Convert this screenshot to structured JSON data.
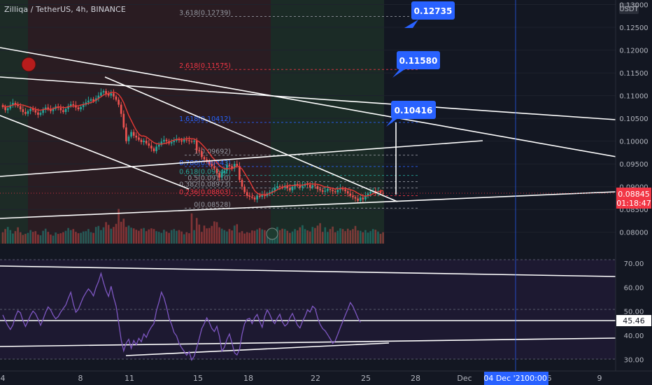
{
  "header": {
    "title": "Zilliqa / TetherUS, 4h, BINANCE"
  },
  "chart_data": [
    {
      "type": "candlestick",
      "panel": "price",
      "symbol": "Zilliqa / TetherUS",
      "interval": "4h",
      "exchange": "BINANCE",
      "currency_label": "USDT",
      "ylim": [
        0.0775,
        0.131
      ],
      "y_ticks": [
        "0.13000",
        "0.12500",
        "0.12000",
        "0.11500",
        "0.11000",
        "0.10500",
        "0.10000",
        "0.09500",
        "0.09000",
        "0.08500",
        "0.08000"
      ],
      "x_ticks": [
        "4",
        "8",
        "11",
        "15",
        "18",
        "22",
        "25",
        "28",
        "Dec",
        "6",
        "9"
      ],
      "last_price": "0.08845",
      "countdown": "01:18:47",
      "crosshair_date": "04 Dec '21",
      "crosshair_time": "00:00",
      "fib_levels": [
        {
          "label": "3.618(0.12739)",
          "value": 0.12739,
          "color": "#9598a1"
        },
        {
          "label": "2.618(0.11575)",
          "value": 0.11575,
          "color": "#f23645"
        },
        {
          "label": "1.618(0.10412)",
          "value": 0.10412,
          "color": "#2962ff"
        },
        {
          "label": "1(0.09692)",
          "value": 0.09692,
          "color": "#9598a1"
        },
        {
          "label": "0.786(0.09443)",
          "value": 0.09443,
          "color": "#2962ff"
        },
        {
          "label": "0.618(0.09247)",
          "value": 0.09247,
          "color": "#26a69a"
        },
        {
          "label": "0.5(0.09110)",
          "value": 0.0911,
          "color": "#9598a1"
        },
        {
          "label": "0.382(0.08973)",
          "value": 0.08973,
          "color": "#9598a1"
        },
        {
          "label": "0.236(0.08803)",
          "value": 0.08803,
          "color": "#f23645"
        },
        {
          "label": "0(0.08528)",
          "value": 0.08528,
          "color": "#9598a1"
        }
      ],
      "callouts": [
        "0.12735",
        "0.11580",
        "0.10416"
      ],
      "close_series": [
        0.1075,
        0.1068,
        0.1072,
        0.1079,
        0.1084,
        0.1081,
        0.1077,
        0.107,
        0.1064,
        0.106,
        0.1066,
        0.1071,
        0.1068,
        0.1063,
        0.1058,
        0.1062,
        0.1069,
        0.1074,
        0.107,
        0.1066,
        0.1071,
        0.1076,
        0.1073,
        0.1068,
        0.1064,
        0.1071,
        0.1077,
        0.1081,
        0.1079,
        0.1074,
        0.107,
        0.1075,
        0.108,
        0.1085,
        0.1089,
        0.1092,
        0.1088,
        0.1094,
        0.11,
        0.1107,
        0.111,
        0.1104,
        0.11,
        0.1105,
        0.1098,
        0.1091,
        0.108,
        0.106,
        0.103,
        0.1,
        0.101,
        0.102,
        0.1012,
        0.1008,
        0.1003,
        0.0998,
        0.1001,
        0.0995,
        0.099,
        0.0984,
        0.0978,
        0.0988,
        0.0992,
        0.0999,
        0.1003,
        0.1,
        0.0995,
        0.0998,
        0.1001,
        0.1005,
        0.1002,
        0.0999,
        0.1003,
        0.1002,
        0.1,
        0.0999,
        0.1001,
        0.098,
        0.0978,
        0.0965,
        0.096,
        0.0955,
        0.095,
        0.0945,
        0.094,
        0.093,
        0.092,
        0.093,
        0.0935,
        0.0948,
        0.0945,
        0.094,
        0.095,
        0.0945,
        0.0915,
        0.09,
        0.0888,
        0.088,
        0.0878,
        0.0876,
        0.0872,
        0.088,
        0.0878,
        0.0883,
        0.088,
        0.0885,
        0.0888,
        0.0891,
        0.0898,
        0.0901,
        0.09,
        0.0898,
        0.0902,
        0.0897,
        0.0892,
        0.09,
        0.0906,
        0.0902,
        0.0898,
        0.0902,
        0.0906,
        0.0904,
        0.0898,
        0.0903,
        0.0901,
        0.0895,
        0.0892,
        0.0889,
        0.0891,
        0.0895,
        0.0893,
        0.089,
        0.0888,
        0.0893,
        0.0897,
        0.0894,
        0.089,
        0.0885,
        0.088,
        0.0877,
        0.0874,
        0.0869,
        0.0876,
        0.0872,
        0.088,
        0.0885,
        0.0889,
        0.0891,
        0.0886,
        0.089,
        0.0886,
        0.08845
      ],
      "volume_series": [
        0.33,
        0.42,
        0.48,
        0.39,
        0.29,
        0.36,
        0.47,
        0.33,
        0.25,
        0.28,
        0.31,
        0.39,
        0.34,
        0.36,
        0.26,
        0.24,
        0.37,
        0.43,
        0.34,
        0.26,
        0.23,
        0.32,
        0.28,
        0.3,
        0.33,
        0.37,
        0.45,
        0.39,
        0.42,
        0.34,
        0.3,
        0.31,
        0.35,
        0.36,
        0.42,
        0.33,
        0.31,
        0.48,
        0.51,
        0.39,
        0.47,
        0.62,
        0.54,
        0.43,
        0.48,
        0.57,
        1.0,
        0.63,
        0.72,
        0.48,
        0.52,
        0.46,
        0.44,
        0.4,
        0.37,
        0.43,
        0.45,
        0.36,
        0.41,
        0.44,
        0.42,
        0.36,
        0.34,
        0.31,
        0.4,
        0.35,
        0.31,
        0.39,
        0.42,
        0.37,
        0.39,
        0.35,
        0.27,
        0.33,
        0.3,
        0.87,
        0.39,
        0.74,
        0.55,
        0.34,
        0.52,
        0.44,
        0.45,
        0.51,
        0.64,
        0.62,
        0.47,
        0.43,
        0.39,
        0.35,
        0.42,
        0.38,
        0.52,
        0.56,
        0.32,
        0.36,
        0.29,
        0.33,
        0.31,
        0.38,
        0.37,
        0.41,
        0.45,
        0.41,
        0.39,
        0.36,
        0.43,
        0.43,
        0.39,
        0.48,
        0.39,
        0.43,
        0.42,
        0.37,
        0.31,
        0.35,
        0.42,
        0.38,
        0.47,
        0.53,
        0.42,
        0.38,
        0.35,
        0.48,
        0.45,
        0.52,
        0.59,
        0.34,
        0.47,
        0.34,
        0.42,
        0.49,
        0.33,
        0.37,
        0.44,
        0.42,
        0.36,
        0.43,
        0.38,
        0.42,
        0.51,
        0.38,
        0.37,
        0.33,
        0.39,
        0.32,
        0.36,
        0.42,
        0.4,
        0.35,
        0.28,
        0.33,
        0.37
      ]
    },
    {
      "type": "line",
      "panel": "rsi",
      "ylim": [
        27,
        74
      ],
      "y_ticks": [
        "70.00",
        "60.00",
        "50.00",
        "40.00",
        "30.00"
      ],
      "last_value": "45.46",
      "values": [
        48.5,
        46.2,
        44.1,
        42.5,
        44.3,
        47.8,
        50.2,
        49.4,
        46.1,
        43.7,
        45.9,
        48.3,
        50.1,
        49.0,
        46.8,
        44.2,
        46.7,
        49.5,
        51.8,
        50.6,
        48.4,
        46.9,
        47.8,
        49.7,
        51.2,
        52.6,
        55.4,
        57.9,
        53.1,
        49.6,
        50.8,
        53.4,
        55.9,
        57.7,
        59.3,
        58.1,
        56.4,
        59.8,
        62.3,
        65.7,
        61.9,
        58.5,
        56.2,
        60.4,
        55.8,
        52.1,
        45.3,
        38.2,
        33.6,
        36.8,
        38.4,
        34.6,
        37.9,
        36.1,
        38.8,
        37.4,
        40.6,
        39.2,
        41.7,
        43.5,
        44.9,
        50.2,
        53.8,
        57.9,
        55.6,
        51.8,
        47.1,
        44.6,
        41.2,
        39.8,
        36.7,
        34.9,
        33.4,
        31.8,
        33.2,
        29.8,
        31.4,
        34.9,
        38.7,
        42.8,
        44.9,
        47.3,
        45.4,
        42.9,
        41.6,
        43.8,
        39.7,
        33.5,
        35.1,
        38.4,
        40.6,
        36.9,
        32.8,
        31.9,
        34.2,
        40.5,
        44.8,
        46.7,
        47.1,
        44.9,
        47.3,
        48.7,
        45.8,
        43.4,
        47.9,
        50.6,
        48.7,
        46.2,
        44.9,
        47.1,
        48.8,
        45.6,
        43.9,
        44.8,
        47.3,
        49.1,
        46.7,
        44.3,
        43.1,
        45.8,
        47.9,
        50.6,
        49.7,
        52.1,
        51.2,
        47.3,
        44.6,
        42.8,
        41.9,
        40.3,
        38.6,
        36.7,
        37.8,
        40.4,
        43.2,
        45.8,
        48.4,
        50.9,
        53.6,
        52.1,
        49.7,
        47.2,
        45.46
      ]
    }
  ],
  "drawing_tools": {
    "up_arrow_color": "#9598a1"
  }
}
